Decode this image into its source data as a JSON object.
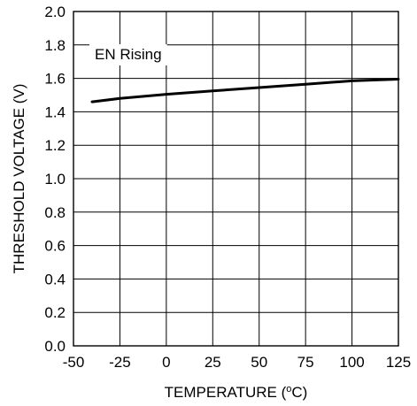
{
  "chart_data": {
    "type": "line",
    "title": "",
    "xlabel": "TEMPERATURE (",
    "xlabel_sup": "o",
    "xlabel_unit": "C)",
    "ylabel": "THRESHOLD VOLTAGE (V)",
    "xlim": [
      -50,
      125
    ],
    "ylim": [
      0.0,
      2.0
    ],
    "xticks": [
      "-50",
      "-25",
      "0",
      "25",
      "50",
      "75",
      "100",
      "125"
    ],
    "yticks": [
      "0.0",
      "0.2",
      "0.4",
      "0.6",
      "0.8",
      "1.0",
      "1.2",
      "1.4",
      "1.6",
      "1.8",
      "2.0"
    ],
    "grid": true,
    "annotation": "EN Rising",
    "series": [
      {
        "x": [
          -40,
          -25,
          0,
          25,
          50,
          75,
          100,
          125
        ],
        "y": [
          1.46,
          1.48,
          1.505,
          1.525,
          1.545,
          1.565,
          1.585,
          1.595
        ]
      }
    ],
    "line_color": "#000000"
  }
}
